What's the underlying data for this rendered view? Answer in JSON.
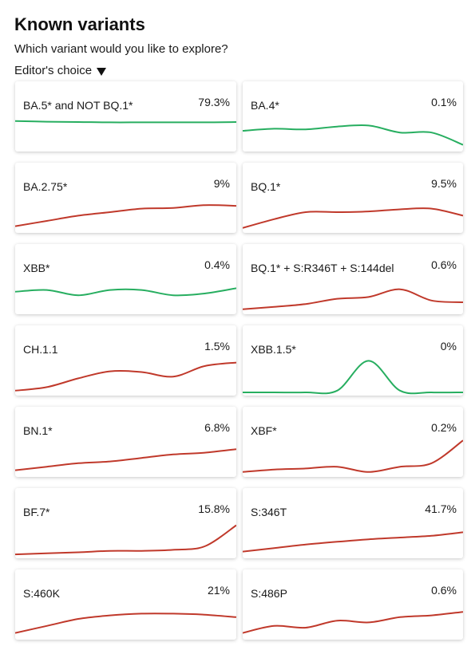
{
  "page": {
    "title": "Known variants",
    "subtitle": "Which variant would you like to explore?",
    "selector_label": "Editor's choice"
  },
  "colors": {
    "up": "#c0392b",
    "down": "#27ae60"
  },
  "variants": [
    {
      "name": "BA.5* and NOT BQ.1*",
      "percent": "79.3%",
      "trend": "down",
      "values": [
        0.78,
        0.76,
        0.75,
        0.74,
        0.74,
        0.74,
        0.74,
        0.75
      ]
    },
    {
      "name": "BA.4*",
      "percent": "0.1%",
      "trend": "down",
      "values": [
        0.5,
        0.56,
        0.54,
        0.62,
        0.65,
        0.45,
        0.45,
        0.1
      ]
    },
    {
      "name": "BA.2.75*",
      "percent": "9%",
      "trend": "up",
      "values": [
        0.1,
        0.25,
        0.4,
        0.5,
        0.6,
        0.62,
        0.7,
        0.68
      ]
    },
    {
      "name": "BQ.1*",
      "percent": "9.5%",
      "trend": "up",
      "values": [
        0.05,
        0.3,
        0.5,
        0.5,
        0.52,
        0.58,
        0.6,
        0.4
      ]
    },
    {
      "name": "XBB*",
      "percent": "0.4%",
      "trend": "down",
      "values": [
        0.55,
        0.6,
        0.45,
        0.6,
        0.6,
        0.45,
        0.5,
        0.65
      ]
    },
    {
      "name": "BQ.1* + S:R346T + S:144del",
      "percent": "0.6%",
      "trend": "up",
      "values": [
        0.05,
        0.12,
        0.2,
        0.35,
        0.4,
        0.62,
        0.3,
        0.25
      ]
    },
    {
      "name": "CH.1.1",
      "percent": "1.5%",
      "trend": "up",
      "values": [
        0.05,
        0.15,
        0.4,
        0.6,
        0.58,
        0.45,
        0.75,
        0.85
      ]
    },
    {
      "name": "XBB.1.5*",
      "percent": "0%",
      "trend": "down",
      "values": [
        0,
        0,
        0,
        0.05,
        0.9,
        0.05,
        0,
        0
      ]
    },
    {
      "name": "BN.1*",
      "percent": "6.8%",
      "trend": "up",
      "values": [
        0.1,
        0.2,
        0.3,
        0.35,
        0.45,
        0.55,
        0.6,
        0.7
      ]
    },
    {
      "name": "XBF*",
      "percent": "0.2%",
      "trend": "up",
      "values": [
        0.05,
        0.12,
        0.15,
        0.2,
        0.05,
        0.2,
        0.3,
        0.95
      ]
    },
    {
      "name": "BF.7*",
      "percent": "15.8%",
      "trend": "up",
      "values": [
        0.02,
        0.05,
        0.08,
        0.12,
        0.12,
        0.15,
        0.25,
        0.85
      ]
    },
    {
      "name": "S:346T",
      "percent": "41.7%",
      "trend": "up",
      "values": [
        0.1,
        0.2,
        0.3,
        0.38,
        0.45,
        0.5,
        0.55,
        0.65
      ]
    },
    {
      "name": "S:460K",
      "percent": "21%",
      "trend": "up",
      "values": [
        0.1,
        0.3,
        0.5,
        0.6,
        0.65,
        0.65,
        0.62,
        0.55
      ]
    },
    {
      "name": "S:486P",
      "percent": "0.6%",
      "trend": "up",
      "values": [
        0.1,
        0.3,
        0.25,
        0.45,
        0.4,
        0.55,
        0.6,
        0.7
      ]
    }
  ]
}
